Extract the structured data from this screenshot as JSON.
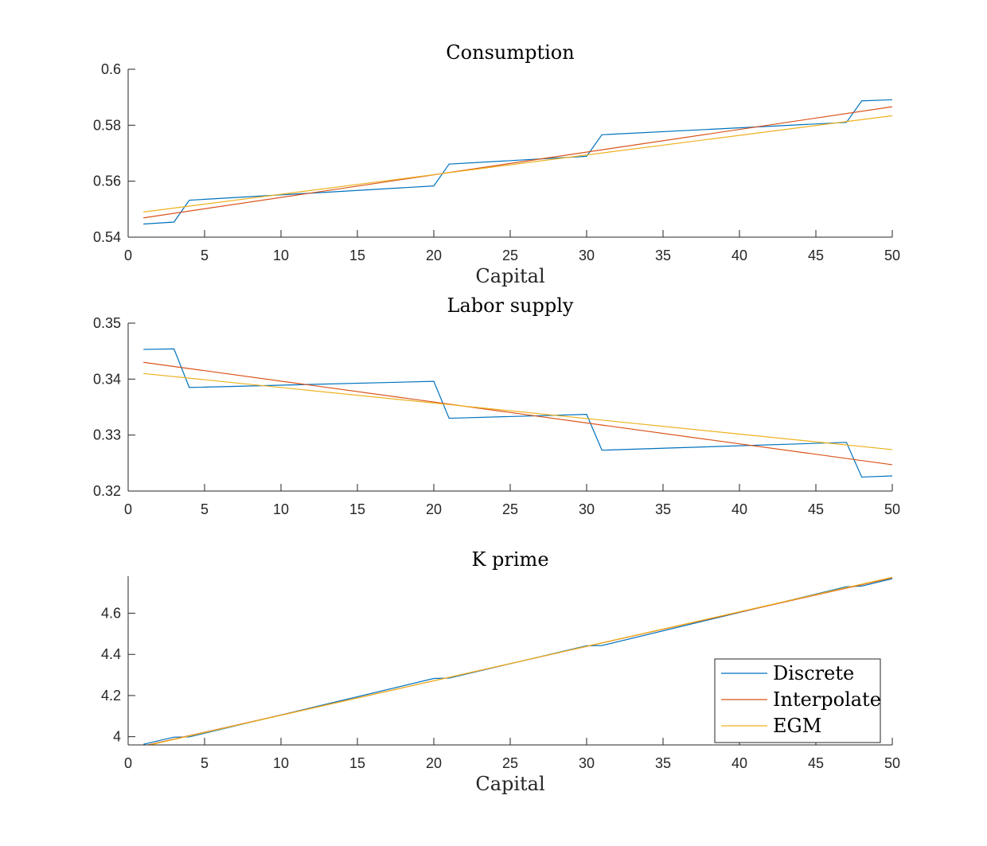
{
  "chart_data": [
    {
      "type": "line",
      "title": "Consumption",
      "xlabel": "Capital",
      "ylabel": "",
      "xlim": [
        0,
        50
      ],
      "ylim": [
        0.54,
        0.6
      ],
      "xticks": [
        "0",
        "5",
        "10",
        "15",
        "20",
        "25",
        "30",
        "35",
        "40",
        "45",
        "50"
      ],
      "yticks": [
        "0.54",
        "0.56",
        "0.58",
        "0.6"
      ],
      "series": [
        {
          "name": "Discrete",
          "color": "#0072BD",
          "x": [
            1,
            3,
            4,
            20,
            21,
            30,
            31,
            47,
            48,
            50
          ],
          "y": [
            0.5447,
            0.5454,
            0.5532,
            0.5583,
            0.5661,
            0.5689,
            0.5766,
            0.581,
            0.5887,
            0.5891
          ]
        },
        {
          "name": "Interpolate",
          "color": "#D95319",
          "x": [
            1,
            50
          ],
          "y": [
            0.5469,
            0.5866
          ]
        },
        {
          "name": "EGM",
          "color": "#EDB120",
          "x": [
            1,
            50
          ],
          "y": [
            0.549,
            0.5834
          ]
        }
      ]
    },
    {
      "type": "line",
      "title": "Labor supply",
      "xlabel": "",
      "ylabel": "",
      "xlim": [
        0,
        50
      ],
      "ylim": [
        0.32,
        0.35
      ],
      "xticks": [
        "0",
        "5",
        "10",
        "15",
        "20",
        "25",
        "30",
        "35",
        "40",
        "45",
        "50"
      ],
      "yticks": [
        "0.32",
        "0.33",
        "0.34",
        "0.35"
      ],
      "series": [
        {
          "name": "Discrete",
          "color": "#0072BD",
          "x": [
            1,
            3,
            4,
            20,
            21,
            30,
            31,
            47,
            48,
            50
          ],
          "y": [
            0.3453,
            0.3454,
            0.3385,
            0.3396,
            0.333,
            0.3337,
            0.3273,
            0.3287,
            0.3225,
            0.3227
          ]
        },
        {
          "name": "Interpolate",
          "color": "#D95319",
          "x": [
            1,
            50
          ],
          "y": [
            0.343,
            0.3247
          ]
        },
        {
          "name": "EGM",
          "color": "#EDB120",
          "x": [
            1,
            50
          ],
          "y": [
            0.341,
            0.3274
          ]
        }
      ]
    },
    {
      "type": "line",
      "title": "K prime",
      "xlabel": "Capital",
      "ylabel": "",
      "xlim": [
        0,
        50
      ],
      "ylim": [
        3.96,
        4.78
      ],
      "xticks": [
        "0",
        "5",
        "10",
        "15",
        "20",
        "25",
        "30",
        "35",
        "40",
        "45",
        "50"
      ],
      "yticks": [
        "4",
        "4.2",
        "4.4",
        "4.6"
      ],
      "yticks_values": [
        4.0,
        4.2,
        4.4,
        4.6
      ],
      "series": [
        {
          "name": "Discrete",
          "color": "#0072BD",
          "x": [
            1,
            3,
            4,
            20,
            21,
            30,
            31,
            47,
            48,
            50
          ],
          "y": [
            3.963,
            3.998,
            3.999,
            4.283,
            4.285,
            4.442,
            4.443,
            4.729,
            4.732,
            4.768
          ]
        },
        {
          "name": "Interpolate",
          "color": "#D95319",
          "x": [
            1,
            50
          ],
          "y": [
            3.955,
            4.772
          ]
        },
        {
          "name": "EGM",
          "color": "#EDB120",
          "x": [
            1,
            50
          ],
          "y": [
            3.953,
            4.775
          ]
        }
      ],
      "legend": {
        "placement": "bottom-right",
        "entries": [
          "Discrete",
          "Interpolate",
          "EGM"
        ]
      }
    }
  ]
}
